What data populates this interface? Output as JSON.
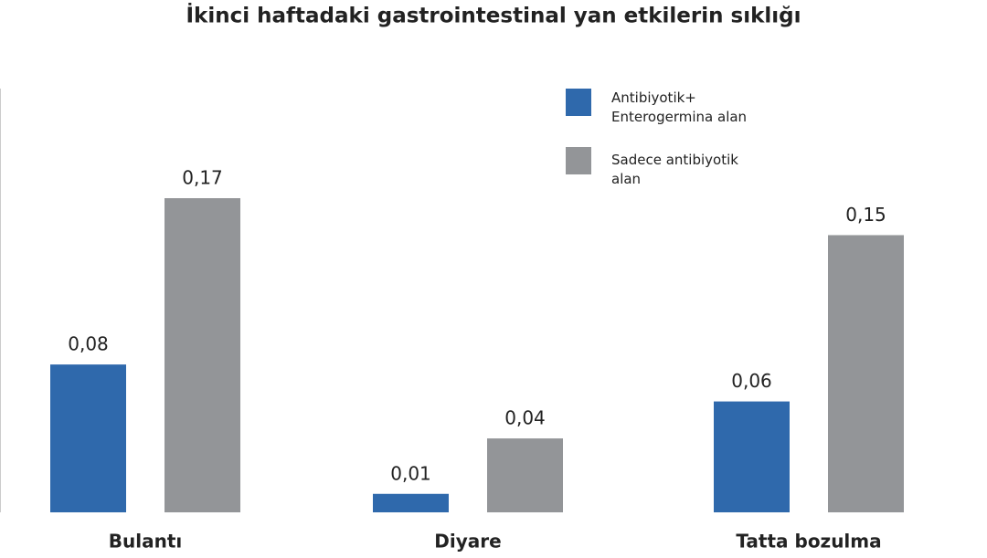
{
  "chart_data": {
    "type": "bar",
    "title": "İkinci haftadaki gastrointestinal yan etkilerin sıklığı",
    "categories": [
      "Bulantı",
      "Diyare",
      "Tatta bozulma"
    ],
    "series": [
      {
        "name": "Antibiyotik+ Enterogermina alan",
        "color": "#2f69ac",
        "values": [
          0.08,
          0.01,
          0.06
        ],
        "value_labels": [
          "0,08",
          "0,01",
          "0,06"
        ]
      },
      {
        "name": "Sadece antibiyotik alan",
        "color": "#939598",
        "values": [
          0.17,
          0.04,
          0.15
        ],
        "value_labels": [
          "0,17",
          "0,04",
          "0,15"
        ]
      }
    ]
  }
}
